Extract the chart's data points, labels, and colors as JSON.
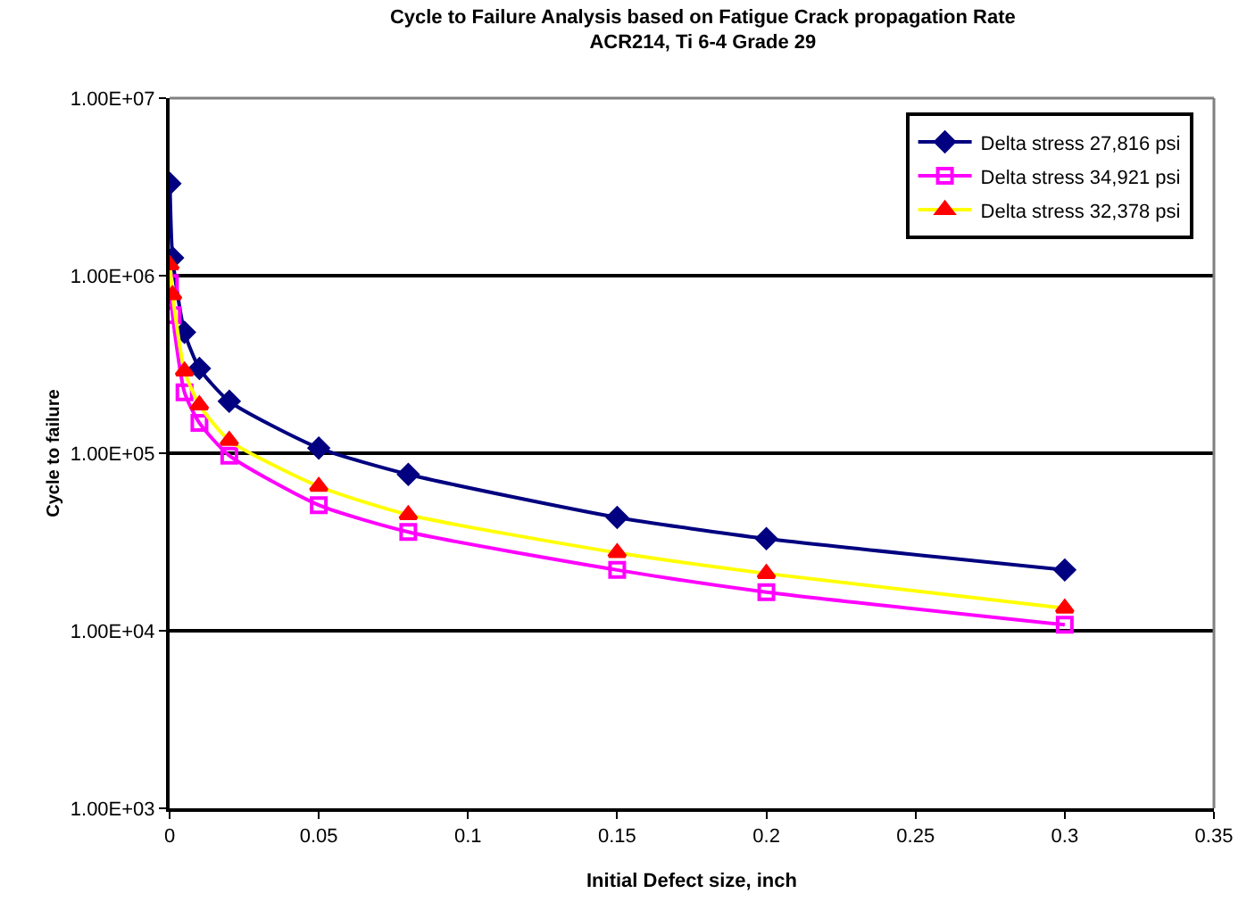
{
  "chart_data": {
    "type": "line",
    "title": "Cycle to Failure Analysis based on Fatigue Crack propagation Rate\nACR214, Ti 6-4 Grade 29",
    "xlabel": "Initial Defect size, inch",
    "ylabel": "Cycle to failure",
    "x": [
      0.0001,
      0.001,
      0.005,
      0.01,
      0.02,
      0.05,
      0.08,
      0.15,
      0.2,
      0.3
    ],
    "series": [
      {
        "name": "Delta stress 27,816 psi",
        "color": "#000080",
        "marker": "diamond",
        "values": [
          3300000,
          1260000,
          480000,
          300000,
          196000,
          107000,
          76000,
          43500,
          33000,
          22000
        ]
      },
      {
        "name": "Delta stress 34,921 psi",
        "color": "#ff00ff",
        "marker": "square",
        "values": [
          910000,
          600000,
          220000,
          148000,
          97000,
          51000,
          36000,
          22000,
          16500,
          10800
        ]
      },
      {
        "name": "Delta stress 32,378 psi",
        "color": "#ffff00",
        "colors": [
          "#ff0000",
          "#ff0000",
          "#ff0000",
          "#ff0000",
          "#ff0000",
          "#ff0000",
          "#ff0000",
          "#ff0000",
          "#ff0000",
          "#ff0000"
        ],
        "marker": "triangle",
        "values": [
          1150000,
          780000,
          290000,
          187000,
          118000,
          65000,
          45000,
          27500,
          21000,
          13400
        ]
      }
    ],
    "log": "y",
    "xlim": [
      0,
      0.35
    ],
    "xticks": [
      0,
      0.05,
      0.1,
      0.15,
      0.2,
      0.25,
      0.3,
      0.35
    ],
    "ylim": [
      1000,
      10000000
    ],
    "yticks": [
      {
        "value": 1000,
        "label": "1.00E+03"
      },
      {
        "value": 10000,
        "label": "1.00E+04"
      },
      {
        "value": 100000,
        "label": "1.00E+05"
      },
      {
        "value": 1000000,
        "label": "1.00E+06"
      },
      {
        "value": 10000000,
        "label": "1.00E+07"
      }
    ],
    "grid": "y",
    "legend": "top right"
  }
}
